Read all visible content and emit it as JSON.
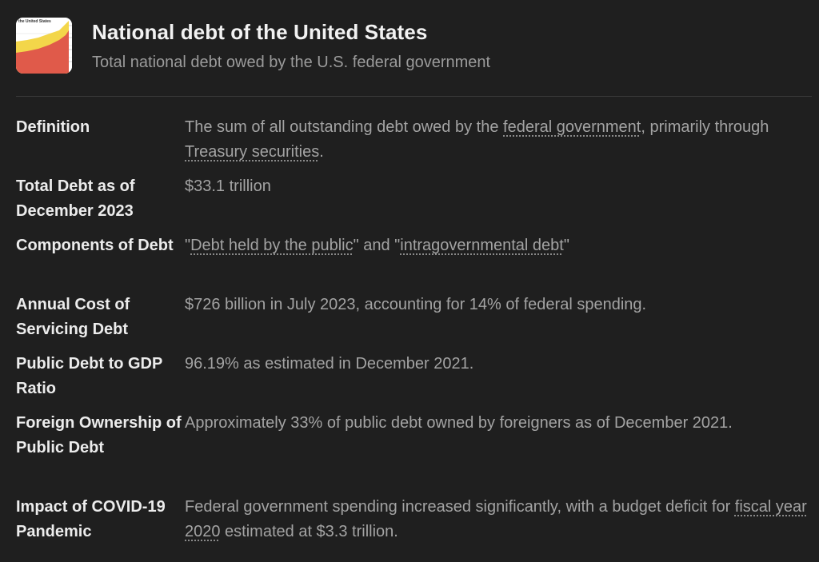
{
  "header": {
    "title": "National debt of the United States",
    "subtitle": "Total national debt owed by the U.S. federal government",
    "thumbnail_caption": "the United States",
    "thumbnail_icon": "area-chart-thumbnail"
  },
  "colors": {
    "background": "#1f1f1f",
    "label_text": "#ececec",
    "value_text": "#a3a3a3",
    "chart_red": "#e05a4a",
    "chart_yellow": "#f3d64a"
  },
  "rows": [
    {
      "label": "Definition",
      "segments": [
        {
          "text": "The sum of all outstanding debt owed by the "
        },
        {
          "text": "federal government",
          "link": true
        },
        {
          "text": ", primarily through "
        },
        {
          "text": "Treasury securities",
          "link": true
        },
        {
          "text": "."
        }
      ]
    },
    {
      "label": "Total Debt as of December 2023",
      "segments": [
        {
          "text": "$33.1 trillion"
        }
      ]
    },
    {
      "label": "Components of Debt",
      "segments": [
        {
          "text": "\""
        },
        {
          "text": "Debt held by the public",
          "link": true
        },
        {
          "text": "\" and \""
        },
        {
          "text": "intragovernmental debt",
          "link": true
        },
        {
          "text": "\""
        }
      ]
    },
    {
      "label": "Annual Cost of Servicing Debt",
      "segments": [
        {
          "text": "$726 billion in July 2023, accounting for 14% of federal spending."
        }
      ]
    },
    {
      "label": "Public Debt to GDP Ratio",
      "segments": [
        {
          "text": "96.19% as estimated in December 2021."
        }
      ]
    },
    {
      "label": "Foreign Ownership of Public Debt",
      "segments": [
        {
          "text": "Approximately 33% of public debt owned by foreigners as of December 2021."
        }
      ]
    },
    {
      "label": "Impact of COVID-19 Pandemic",
      "segments": [
        {
          "text": "Federal government spending increased significantly, with a budget deficit for "
        },
        {
          "text": "fiscal year 2020",
          "link": true
        },
        {
          "text": " estimated at $3.3 trillion."
        }
      ]
    }
  ]
}
